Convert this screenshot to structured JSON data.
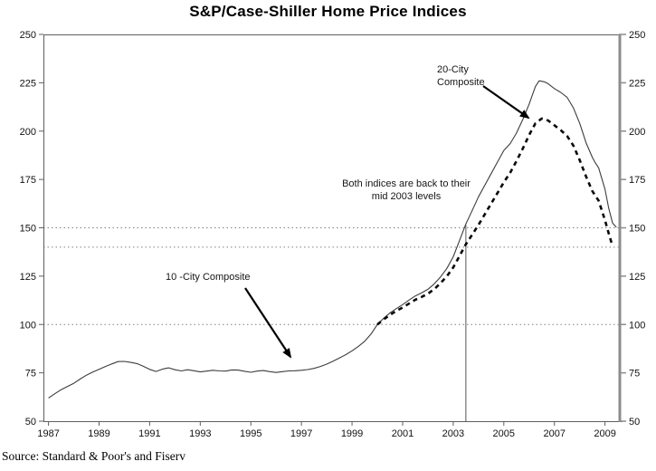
{
  "title": "S&P/Case-Shiller Home Price Indices",
  "source_note": "Source: Standard & Poor's and Fiserv",
  "colors": {
    "background": "#ffffff",
    "solid_line": "#3c3c3c",
    "dashed_line": "#0a0a0a",
    "gridline": "#7f7f7f",
    "axis": "#5f5f5f",
    "right_axis": "#8c8c8c",
    "text": "#111111"
  },
  "chart_data": {
    "type": "line",
    "title": "S&P/Case-Shiller Home Price Indices",
    "xlabel": "",
    "ylabel": "",
    "x_axis": {
      "range": [
        1986.8,
        2009.55
      ],
      "ticks": [
        1987,
        1989,
        1991,
        1993,
        1995,
        1997,
        1999,
        2001,
        2003,
        2005,
        2007,
        2009
      ]
    },
    "y_axis": {
      "range": [
        50,
        250
      ],
      "ticks": [
        50,
        75,
        100,
        125,
        150,
        175,
        200,
        225,
        250
      ],
      "mirrored_right": true
    },
    "dotted_gridlines_y": [
      100,
      140,
      150
    ],
    "reference_line": {
      "x": 2003.5,
      "top_value": 151.5
    },
    "legend_position": "none",
    "grid": "dotted-reference-only",
    "series": [
      {
        "name": "10-City Composite",
        "style": "solid",
        "points": [
          [
            1987.0,
            62.0
          ],
          [
            1987.25,
            64.2
          ],
          [
            1987.5,
            66.3
          ],
          [
            1987.75,
            68.0
          ],
          [
            1988.0,
            69.6
          ],
          [
            1988.25,
            71.8
          ],
          [
            1988.5,
            73.8
          ],
          [
            1988.75,
            75.4
          ],
          [
            1989.0,
            76.8
          ],
          [
            1989.25,
            78.3
          ],
          [
            1989.5,
            79.6
          ],
          [
            1989.75,
            80.8
          ],
          [
            1990.0,
            80.9
          ],
          [
            1990.25,
            80.4
          ],
          [
            1990.5,
            79.8
          ],
          [
            1990.75,
            78.4
          ],
          [
            1991.0,
            76.8
          ],
          [
            1991.25,
            75.7
          ],
          [
            1991.5,
            76.9
          ],
          [
            1991.75,
            77.6
          ],
          [
            1992.0,
            76.6
          ],
          [
            1992.25,
            76.0
          ],
          [
            1992.5,
            76.6
          ],
          [
            1992.75,
            76.1
          ],
          [
            1993.0,
            75.5
          ],
          [
            1993.25,
            75.9
          ],
          [
            1993.5,
            76.3
          ],
          [
            1993.75,
            76.0
          ],
          [
            1994.0,
            75.9
          ],
          [
            1994.25,
            76.5
          ],
          [
            1994.5,
            76.4
          ],
          [
            1994.75,
            75.8
          ],
          [
            1995.0,
            75.3
          ],
          [
            1995.25,
            75.9
          ],
          [
            1995.5,
            76.2
          ],
          [
            1995.75,
            75.6
          ],
          [
            1996.0,
            75.2
          ],
          [
            1996.25,
            75.6
          ],
          [
            1996.5,
            76.0
          ],
          [
            1996.75,
            76.1
          ],
          [
            1997.0,
            76.3
          ],
          [
            1997.25,
            76.7
          ],
          [
            1997.5,
            77.3
          ],
          [
            1997.75,
            78.3
          ],
          [
            1998.0,
            79.5
          ],
          [
            1998.25,
            81.0
          ],
          [
            1998.5,
            82.7
          ],
          [
            1998.75,
            84.4
          ],
          [
            1999.0,
            86.4
          ],
          [
            1999.25,
            88.7
          ],
          [
            1999.5,
            91.3
          ],
          [
            1999.75,
            95.0
          ],
          [
            2000.0,
            100.0
          ],
          [
            2000.25,
            103.2
          ],
          [
            2000.5,
            106.0
          ],
          [
            2000.75,
            108.2
          ],
          [
            2001.0,
            110.3
          ],
          [
            2001.25,
            112.6
          ],
          [
            2001.5,
            114.8
          ],
          [
            2001.75,
            116.3
          ],
          [
            2002.0,
            118.2
          ],
          [
            2002.25,
            121.0
          ],
          [
            2002.5,
            124.6
          ],
          [
            2002.75,
            129.0
          ],
          [
            2003.0,
            135.0
          ],
          [
            2003.25,
            143.5
          ],
          [
            2003.5,
            152.0
          ],
          [
            2003.75,
            159.0
          ],
          [
            2004.0,
            166.0
          ],
          [
            2004.25,
            172.0
          ],
          [
            2004.5,
            178.0
          ],
          [
            2004.75,
            184.0
          ],
          [
            2005.0,
            190.0
          ],
          [
            2005.25,
            193.5
          ],
          [
            2005.5,
            199.0
          ],
          [
            2005.75,
            206.0
          ],
          [
            2006.0,
            214.0
          ],
          [
            2006.25,
            223.0
          ],
          [
            2006.4,
            226.0
          ],
          [
            2006.6,
            225.5
          ],
          [
            2006.75,
            224.5
          ],
          [
            2007.0,
            222.0
          ],
          [
            2007.25,
            220.0
          ],
          [
            2007.5,
            217.5
          ],
          [
            2007.75,
            212.0
          ],
          [
            2008.0,
            204.0
          ],
          [
            2008.25,
            194.0
          ],
          [
            2008.5,
            186.5
          ],
          [
            2008.6,
            184.0
          ],
          [
            2008.75,
            181.0
          ],
          [
            2009.0,
            170.0
          ],
          [
            2009.15,
            160.0
          ],
          [
            2009.3,
            152.5
          ],
          [
            2009.45,
            150.3
          ]
        ]
      },
      {
        "name": "20-City Composite",
        "style": "dashed",
        "points": [
          [
            2000.0,
            100.0
          ],
          [
            2000.25,
            102.6
          ],
          [
            2000.5,
            105.0
          ],
          [
            2000.75,
            107.0
          ],
          [
            2001.0,
            108.8
          ],
          [
            2001.25,
            110.8
          ],
          [
            2001.5,
            112.8
          ],
          [
            2001.75,
            114.2
          ],
          [
            2002.0,
            115.9
          ],
          [
            2002.25,
            118.3
          ],
          [
            2002.5,
            121.4
          ],
          [
            2002.75,
            125.0
          ],
          [
            2003.0,
            129.5
          ],
          [
            2003.25,
            135.5
          ],
          [
            2003.5,
            141.5
          ],
          [
            2003.75,
            146.5
          ],
          [
            2004.0,
            151.5
          ],
          [
            2004.25,
            157.0
          ],
          [
            2004.5,
            162.5
          ],
          [
            2004.75,
            168.0
          ],
          [
            2005.0,
            173.5
          ],
          [
            2005.25,
            178.5
          ],
          [
            2005.5,
            184.5
          ],
          [
            2005.75,
            191.0
          ],
          [
            2006.0,
            198.0
          ],
          [
            2006.25,
            204.0
          ],
          [
            2006.5,
            206.5
          ],
          [
            2006.75,
            205.5
          ],
          [
            2007.0,
            203.0
          ],
          [
            2007.25,
            200.5
          ],
          [
            2007.5,
            197.5
          ],
          [
            2007.75,
            192.5
          ],
          [
            2008.0,
            185.0
          ],
          [
            2008.25,
            176.5
          ],
          [
            2008.5,
            169.0
          ],
          [
            2008.75,
            164.0
          ],
          [
            2009.0,
            154.0
          ],
          [
            2009.15,
            147.0
          ],
          [
            2009.3,
            140.5
          ]
        ]
      }
    ],
    "annotations": {
      "twenty_city": {
        "lines": [
          "20-City",
          "Composite"
        ]
      },
      "mid2003_note": {
        "lines": [
          "Both indices are back to their",
          "mid 2003 levels"
        ]
      },
      "ten_city": {
        "lines": [
          "10 -City Composite"
        ]
      }
    }
  }
}
